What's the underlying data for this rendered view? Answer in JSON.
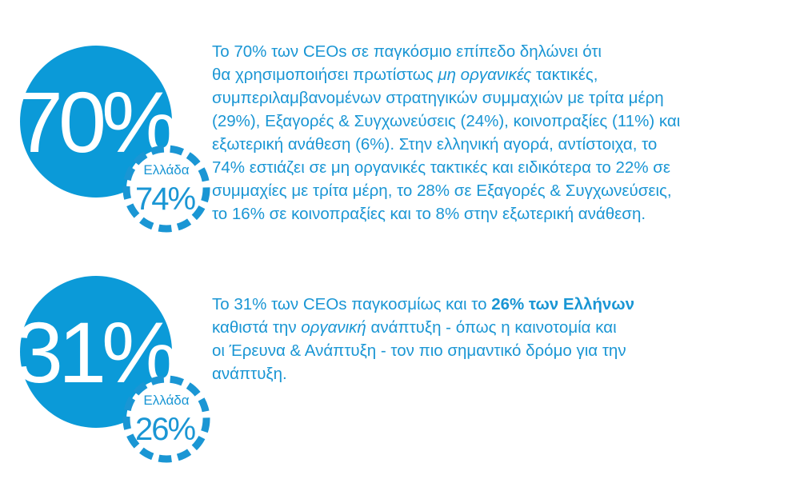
{
  "stats": [
    {
      "value": "70%",
      "greece_label": "Ελλάδα",
      "greece_value": "74%",
      "lines": [
        [
          {
            "text": "Το 70% των CEOs σε παγκόσμιο επίπεδο δηλώνει ότι"
          }
        ],
        [
          {
            "text": "θα χρησιμοποιήσει πρωτίστως "
          },
          {
            "text": "μη οργανικές",
            "italic": true
          },
          {
            "text": " τακτικές,"
          }
        ],
        [
          {
            "text": "συμπεριλαμβανομένων στρατηγικών συμμαχιών με τρίτα μέρη"
          }
        ],
        [
          {
            "text": "(29%), Εξαγορές & Συγχωνεύσεις (24%), κοινοπραξίες (11%) και"
          }
        ],
        [
          {
            "text": "εξωτερική ανάθεση (6%). Στην ελληνική αγορά, αντίστοιχα, το"
          }
        ],
        [
          {
            "text": "74% εστιάζει σε μη οργανικές τακτικές και ειδικότερα το 22% σε"
          }
        ],
        [
          {
            "text": "συμμαχίες με τρίτα μέρη, το 28% σε Εξαγορές & Συγχωνεύσεις,"
          }
        ],
        [
          {
            "text": "το 16% σε κοινοπραξίες και το 8% στην εξωτερική ανάθεση."
          }
        ]
      ]
    },
    {
      "value": "31%",
      "greece_label": "Ελλάδα",
      "greece_value": "26%",
      "lines": [
        [
          {
            "text": "Το 31% των CEOs παγκοσμίως και το "
          },
          {
            "text": "26% των Ελλήνων",
            "bold": true
          }
        ],
        [
          {
            "text": "καθιστά την "
          },
          {
            "text": "οργανική",
            "italic": true
          },
          {
            "text": " ανάπτυξη - όπως η καινοτομία και"
          }
        ],
        [
          {
            "text": "οι Έρευνα & Ανάπτυξη - τον πιο σημαντικό δρόμο για την"
          }
        ],
        [
          {
            "text": "ανάπτυξη."
          }
        ]
      ]
    }
  ]
}
